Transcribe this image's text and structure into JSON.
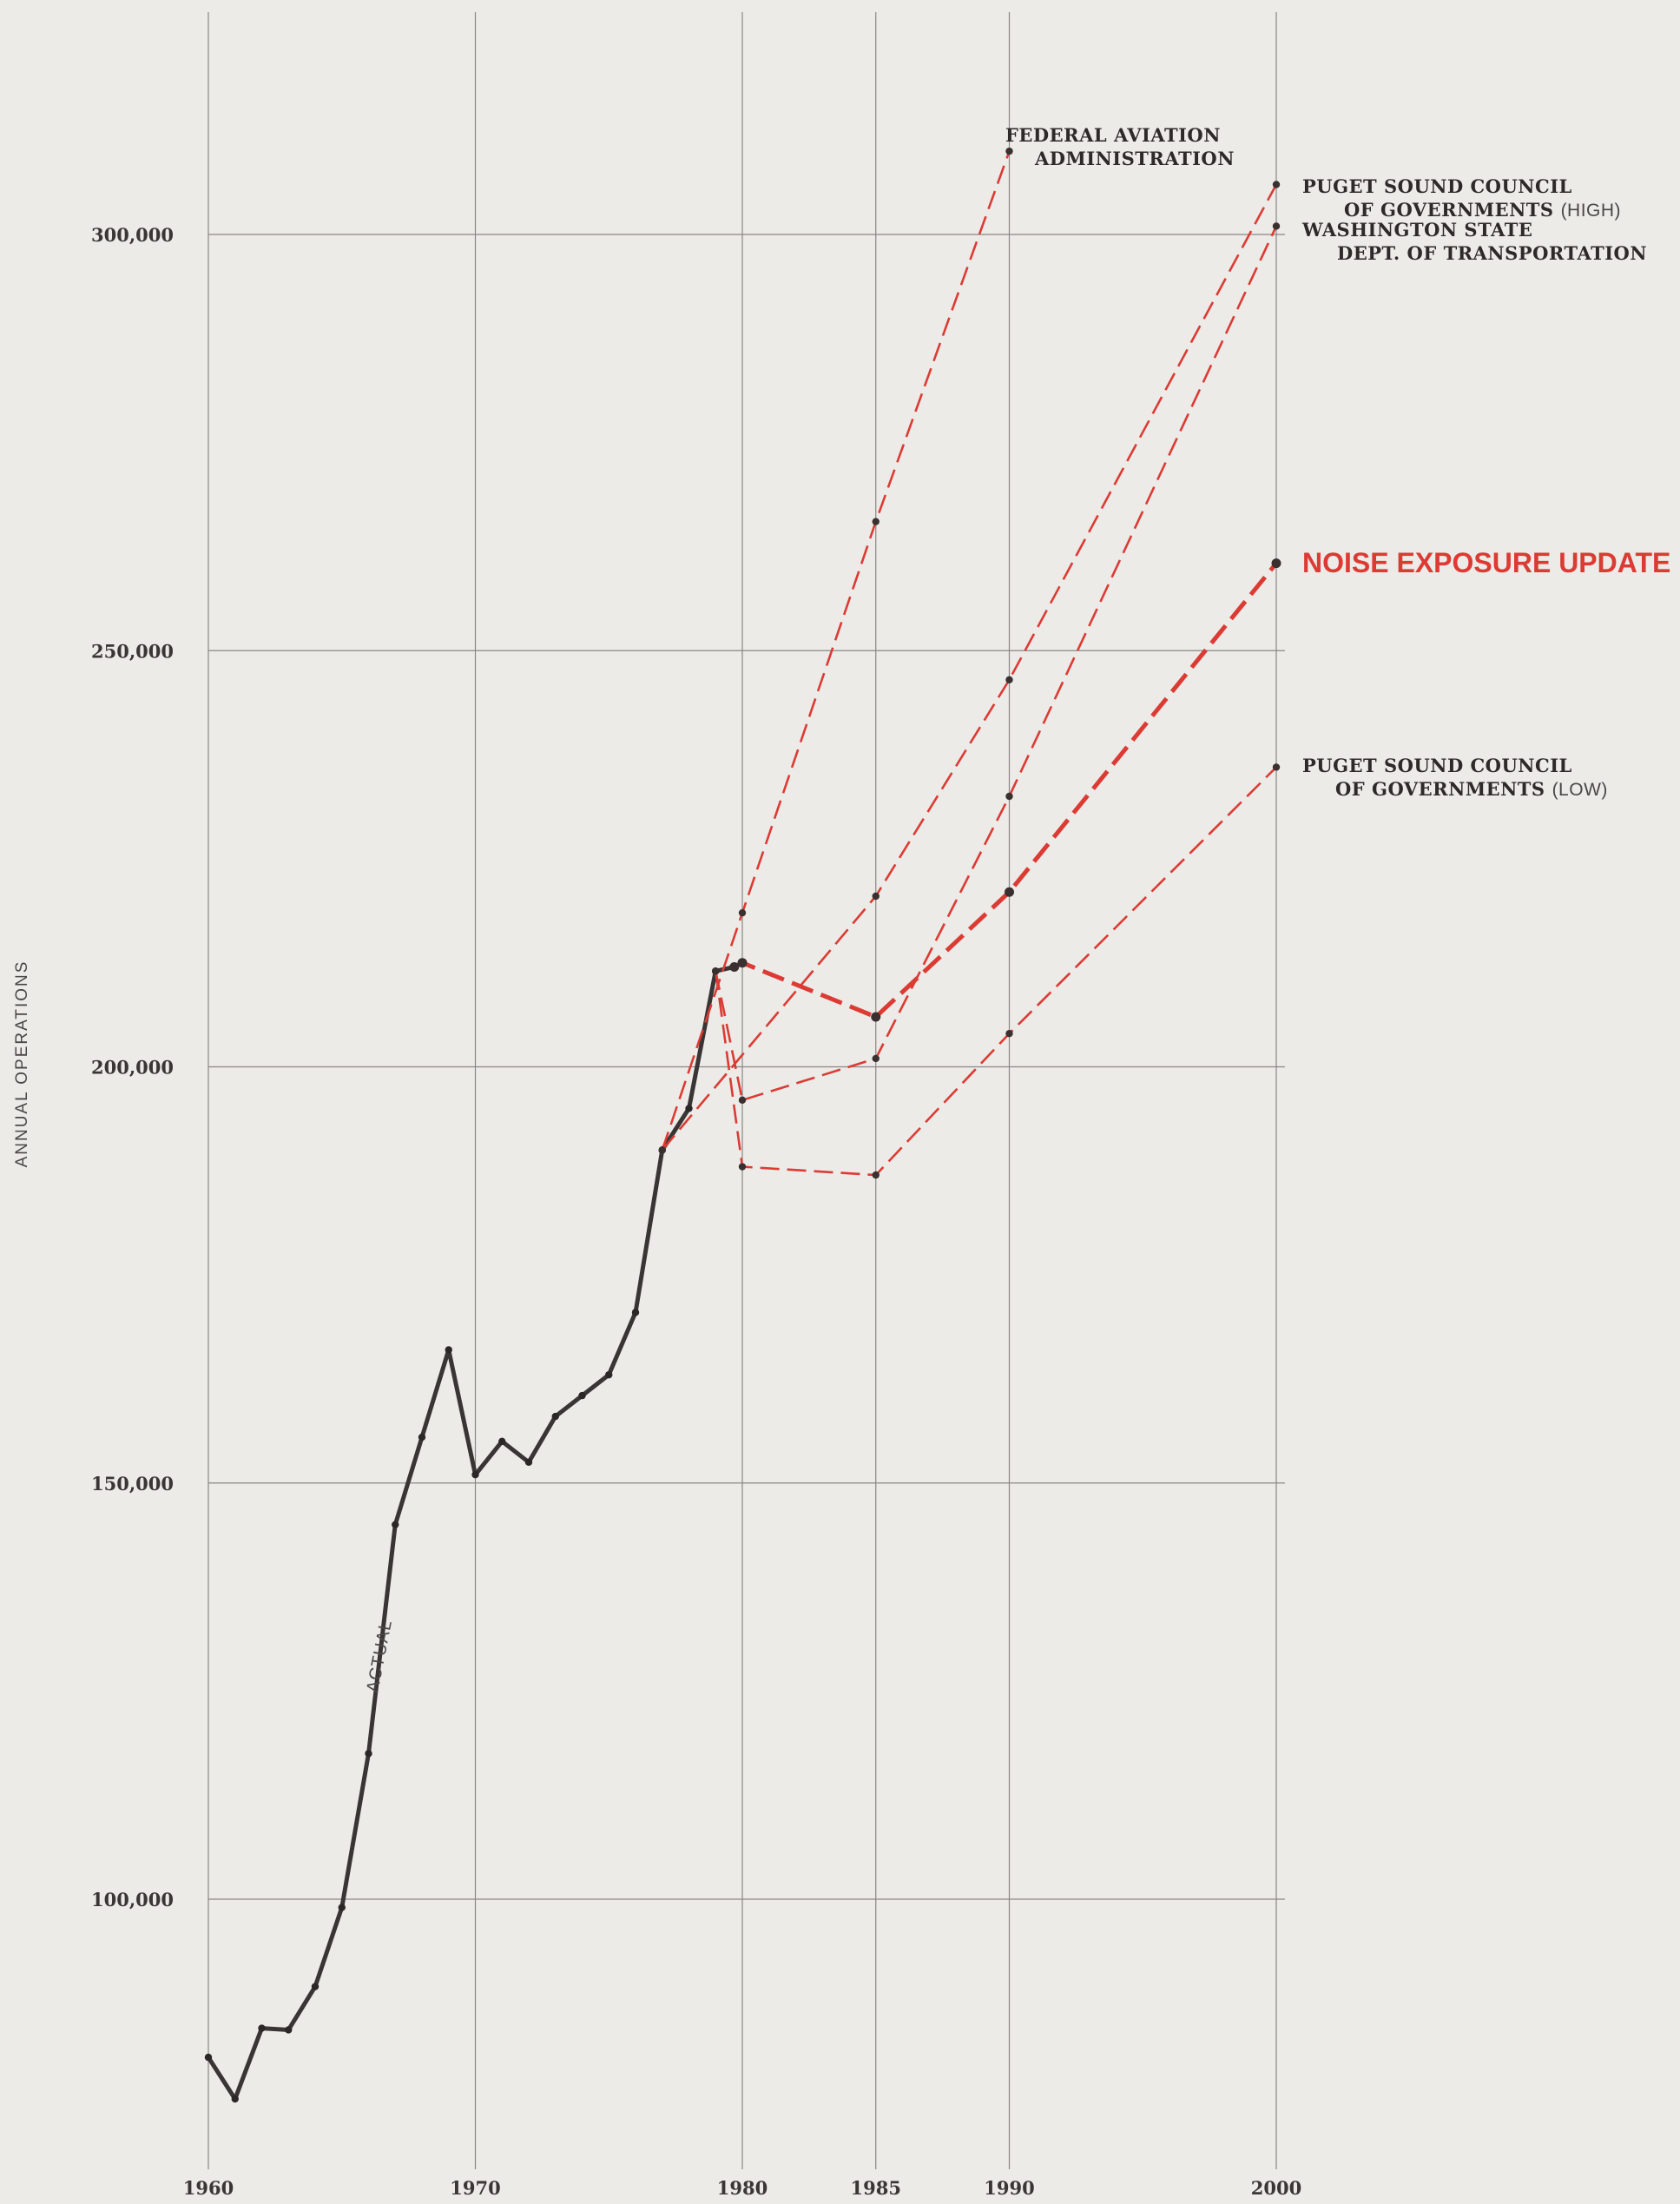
{
  "chart_data": {
    "type": "line",
    "ylabel": "ANNUAL OPERATIONS",
    "xlabel": "",
    "x_ticks": [
      1960,
      1970,
      1980,
      1985,
      1990,
      2000
    ],
    "x_tick_labels": [
      "1960",
      "1970",
      "1980",
      "1985",
      "1990",
      "2000"
    ],
    "y_ticks": [
      100000,
      150000,
      200000,
      250000,
      300000
    ],
    "y_tick_labels": [
      "100,000",
      "150,000",
      "200,000",
      "250,000",
      "300,000"
    ],
    "xlim": [
      1960,
      2000
    ],
    "ylim": [
      73000,
      327000
    ],
    "grid": true,
    "colors": {
      "actual": "#3a3535",
      "forecast": "#dc3b34",
      "grid": "#8a8785"
    },
    "series": [
      {
        "name": "ACTUAL",
        "style": "solid",
        "x": [
          1960,
          1961,
          1962,
          1963,
          1964,
          1965,
          1966,
          1967,
          1968,
          1969,
          1970,
          1971,
          1972,
          1973,
          1974,
          1975,
          1976,
          1977,
          1978,
          1979,
          1979.7
        ],
        "y": [
          81000,
          76000,
          84500,
          84300,
          89500,
          99000,
          117500,
          145000,
          155500,
          166000,
          151000,
          155000,
          152500,
          158000,
          160500,
          163000,
          170500,
          190000,
          195000,
          211500,
          212000
        ]
      },
      {
        "name_lines": [
          "FEDERAL AVIATION",
          "ADMINISTRATION"
        ],
        "style": "dashed",
        "x": [
          1977,
          1980,
          1985,
          1990
        ],
        "y": [
          190000,
          218500,
          265500,
          310000
        ]
      },
      {
        "name_lines": [
          "PUGET SOUND COUNCIL",
          "OF GOVERNMENTS"
        ],
        "name_suffix": "(HIGH)",
        "style": "dashed",
        "x": [
          1977,
          1985,
          1990,
          2000
        ],
        "y": [
          190000,
          220500,
          246500,
          306000
        ]
      },
      {
        "name_lines": [
          "WASHINGTON STATE",
          "DEPT. OF TRANSPORTATION"
        ],
        "style": "dashed",
        "x": [
          1979,
          1980,
          1985,
          1990,
          2000
        ],
        "y": [
          211500,
          196000,
          201000,
          232500,
          301000
        ]
      },
      {
        "name_lines": [
          "NOISE EXPOSURE UPDATE"
        ],
        "style": "dashed-bold",
        "x": [
          1979.7,
          1980,
          1985,
          1990,
          2000
        ],
        "y": [
          212000,
          212500,
          206000,
          221000,
          260500
        ]
      },
      {
        "name_lines": [
          "PUGET SOUND COUNCIL",
          "OF GOVERNMENTS"
        ],
        "name_suffix": "(LOW)",
        "style": "dashed",
        "x": [
          1979,
          1980,
          1985,
          1990,
          2000
        ],
        "y": [
          211500,
          188000,
          187000,
          204000,
          236000
        ]
      }
    ]
  }
}
